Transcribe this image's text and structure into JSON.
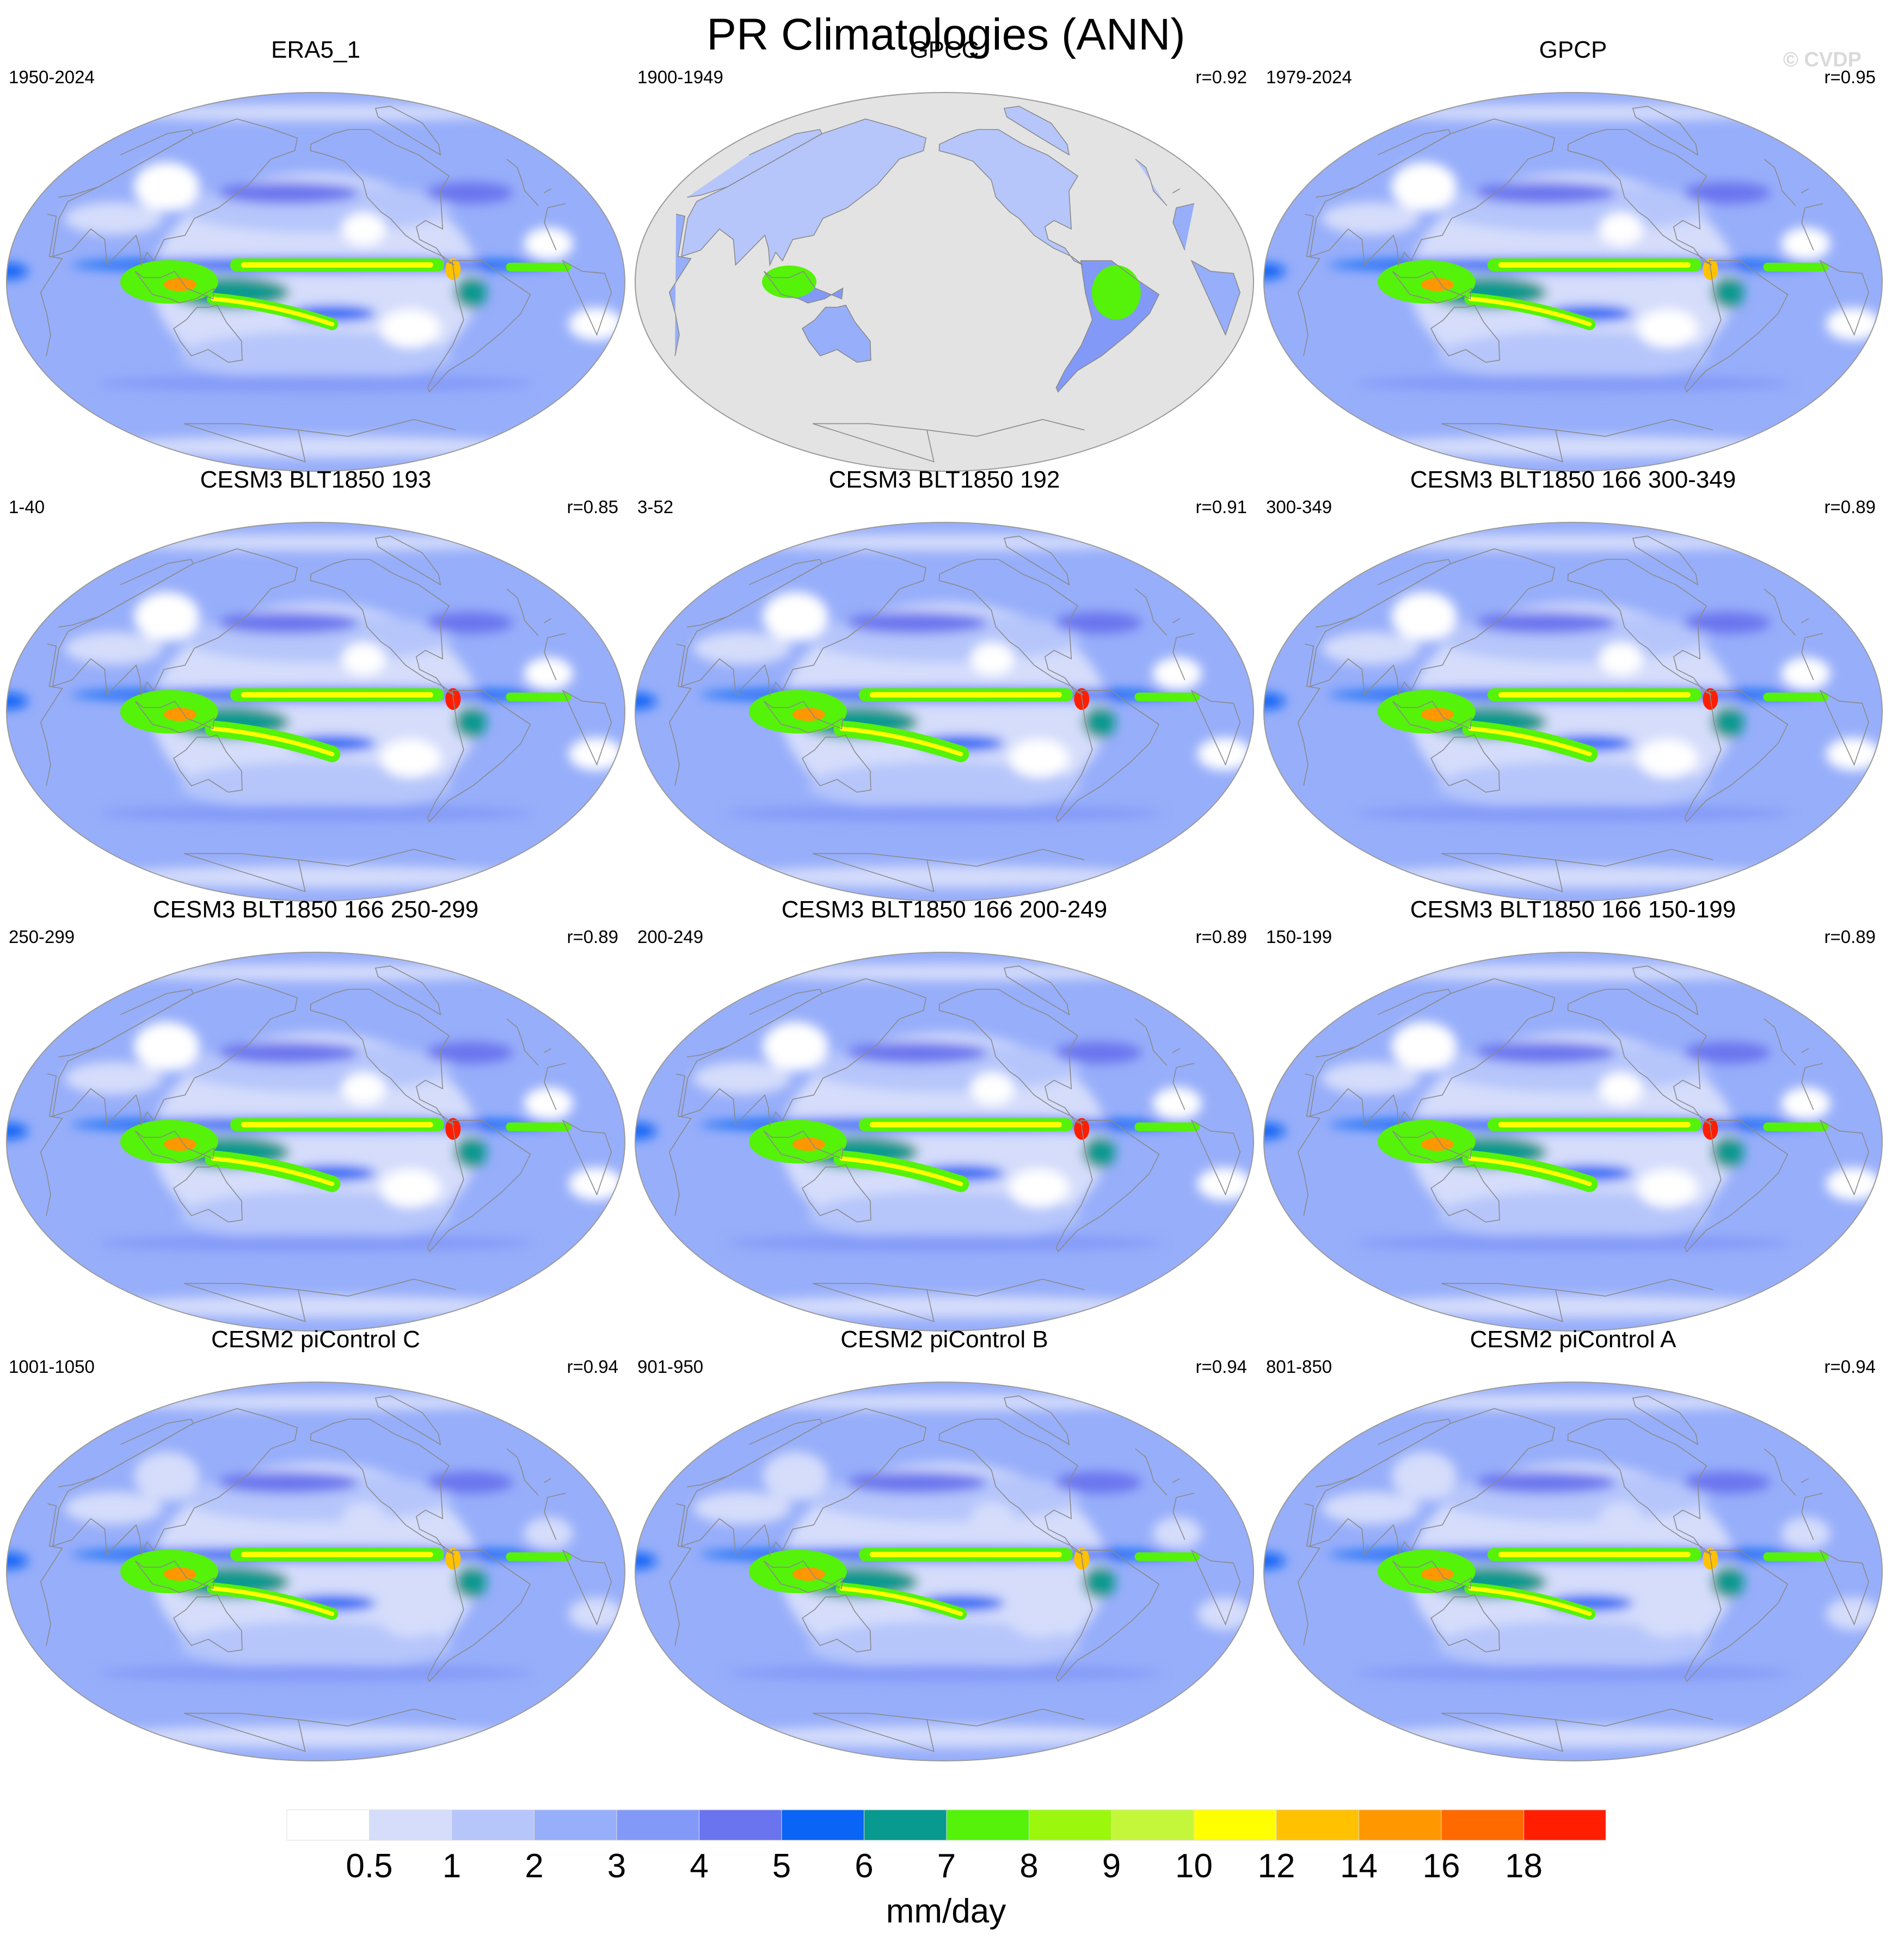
{
  "title": "PR Climatologies (ANN)",
  "watermark": "© CVDP",
  "panels": [
    {
      "title": "ERA5_1",
      "period": "1950-2024",
      "r": "",
      "style": "reanalysis"
    },
    {
      "title": "GPCC",
      "period": "1900-1949",
      "r": "r=0.92",
      "style": "land"
    },
    {
      "title": "GPCP",
      "period": "1979-2024",
      "r": "r=0.95",
      "style": "reanalysis"
    },
    {
      "title": "CESM3 BLT1850 193",
      "period": "1-40",
      "r": "r=0.85",
      "style": "model"
    },
    {
      "title": "CESM3 BLT1850 192",
      "period": "3-52",
      "r": "r=0.91",
      "style": "model"
    },
    {
      "title": "CESM3 BLT1850 166 300-349",
      "period": "300-349",
      "r": "r=0.89",
      "style": "model"
    },
    {
      "title": "CESM3 BLT1850 166 250-299",
      "period": "250-299",
      "r": "r=0.89",
      "style": "model"
    },
    {
      "title": "CESM3 BLT1850 166 200-249",
      "period": "200-249",
      "r": "r=0.89",
      "style": "model"
    },
    {
      "title": "CESM3 BLT1850 166 150-199",
      "period": "150-199",
      "r": "r=0.89",
      "style": "model"
    },
    {
      "title": "CESM2 piControl C",
      "period": "1001-1050",
      "r": "r=0.94",
      "style": "cesm2"
    },
    {
      "title": "CESM2 piControl B",
      "period": "901-950",
      "r": "r=0.94",
      "style": "cesm2"
    },
    {
      "title": "CESM2 piControl A",
      "period": "801-850",
      "r": "r=0.94",
      "style": "cesm2"
    }
  ],
  "colorbar": {
    "units": "mm/day",
    "levels": [
      "0.5",
      "1",
      "2",
      "3",
      "4",
      "5",
      "6",
      "7",
      "8",
      "9",
      "10",
      "12",
      "14",
      "16",
      "18"
    ],
    "colors": [
      "#ffffff",
      "#d5ddfb",
      "#b6c6fb",
      "#97aefa",
      "#8399f8",
      "#6a74ee",
      "#0a64f5",
      "#08998f",
      "#55f20a",
      "#9bf70c",
      "#c4f73a",
      "#ffff00",
      "#ffc100",
      "#ff9800",
      "#ff6a00",
      "#ff1f00"
    ]
  },
  "land_mask_color": "#e3e3e3"
}
